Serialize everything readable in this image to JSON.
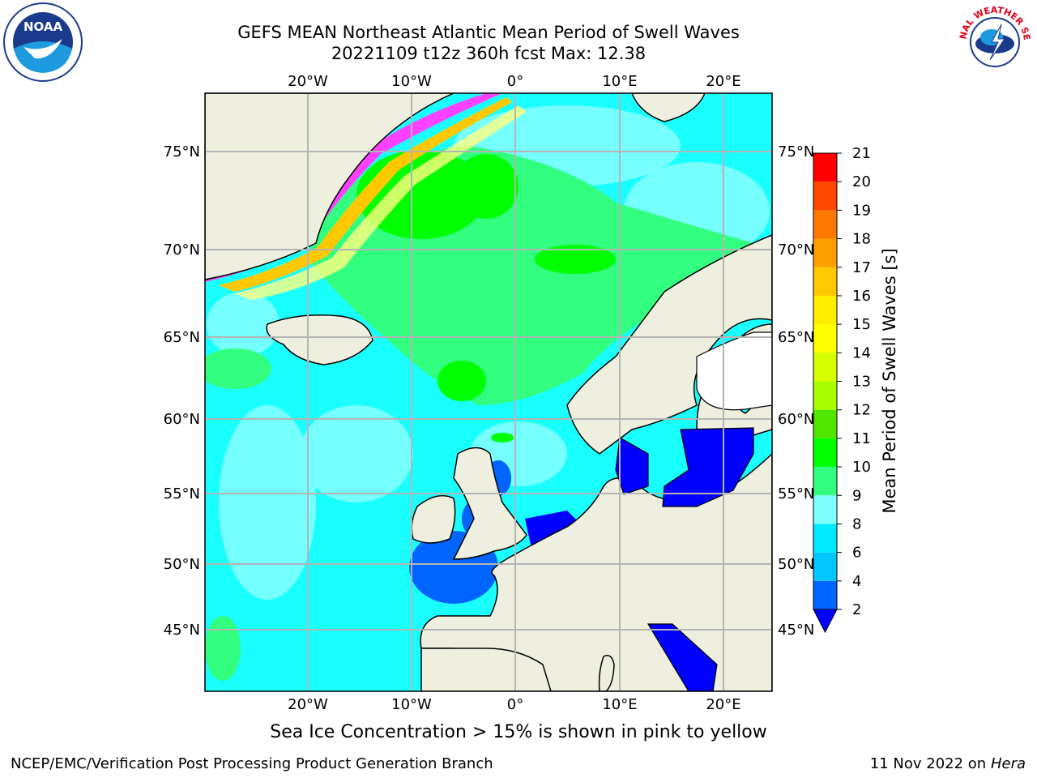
{
  "title": {
    "line1": "GEFS MEAN Northeast Atlantic Mean Period of Swell Waves",
    "line2": "20221109 t12z 360h fcst   Max: 12.38"
  },
  "map": {
    "lon_ticks": [
      "20°W",
      "10°W",
      "0°",
      "10°E",
      "20°E"
    ],
    "lat_ticks": [
      "75°N",
      "70°N",
      "65°N",
      "60°N",
      "55°N",
      "50°N",
      "45°N"
    ],
    "ocean_color": "#19ffff",
    "land_color": "#efefdf",
    "grid_color": "#b4b4b4"
  },
  "colorbar": {
    "label": "Mean Period of Swell Waves [s]",
    "ticks": [
      "2",
      "4",
      "6",
      "8",
      "9",
      "10",
      "11",
      "12",
      "13",
      "14",
      "15",
      "16",
      "17",
      "18",
      "19",
      "20",
      "21"
    ],
    "colors": [
      "#0064ff",
      "#00c8ff",
      "#00eaff",
      "#80ffff",
      "#32ff80",
      "#00ff00",
      "#50e600",
      "#a8ff00",
      "#d6ff00",
      "#ffff00",
      "#ffec00",
      "#ffc800",
      "#ffa000",
      "#ff7800",
      "#ff4800",
      "#ff0000"
    ],
    "under_color": "#0000ff"
  },
  "caption": "Sea Ice Concentration > 15% is shown in pink to yellow",
  "footer": {
    "left": "NCEP/EMC/Verification Post Processing Product Generation Branch",
    "right_date": "11 Nov 2022 on",
    "right_host": "Hera"
  },
  "logos": {
    "noaa_text": "NOAA",
    "nws_text": "NATIONAL WEATHER SERVICE"
  }
}
